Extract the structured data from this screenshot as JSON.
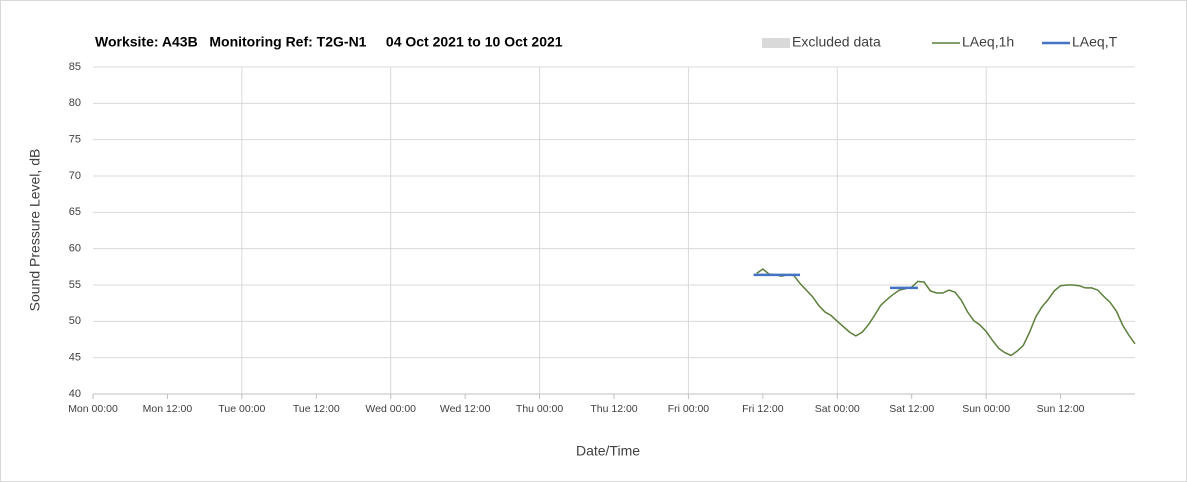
{
  "chart_data": {
    "type": "line",
    "title": "Worksite: A43B   Monitoring Ref: T2G-N1     04 Oct 2021 to 10 Oct 2021",
    "x_label": "Date/Time",
    "y_label": "Sound Pressure Level, dB",
    "xlim": [
      0,
      168
    ],
    "xticks": [
      {
        "value": 0,
        "label": "Mon 00:00"
      },
      {
        "value": 12,
        "label": "Mon 12:00"
      },
      {
        "value": 24,
        "label": "Tue 00:00"
      },
      {
        "value": 36,
        "label": "Tue 12:00"
      },
      {
        "value": 48,
        "label": "Wed 00:00"
      },
      {
        "value": 60,
        "label": "Wed 12:00"
      },
      {
        "value": 72,
        "label": "Thu 00:00"
      },
      {
        "value": 84,
        "label": "Thu 12:00"
      },
      {
        "value": 96,
        "label": "Fri 00:00"
      },
      {
        "value": 108,
        "label": "Fri 12:00"
      },
      {
        "value": 120,
        "label": "Sat 00:00"
      },
      {
        "value": 132,
        "label": "Sat 12:00"
      },
      {
        "value": 144,
        "label": "Sun 00:00"
      },
      {
        "value": 156,
        "label": "Sun 12:00"
      }
    ],
    "ylim": [
      40,
      85
    ],
    "yticks": [
      40,
      45,
      50,
      55,
      60,
      65,
      70,
      75,
      80,
      85
    ],
    "grid": true,
    "legend": "top-right",
    "series": [
      {
        "name": "Excluded data",
        "color": "#d9d9d9",
        "x": [],
        "values": []
      },
      {
        "name": "LAeq,1h",
        "color": "#5b7f3a",
        "x": [
          107,
          108,
          109,
          110,
          111,
          112,
          113,
          114,
          116,
          117,
          118,
          119,
          120,
          122,
          123,
          124,
          125,
          126,
          127,
          128,
          129,
          130,
          132,
          133,
          134,
          135,
          136,
          137,
          138,
          139,
          140,
          141,
          142,
          143,
          144,
          145,
          146,
          147,
          148,
          149,
          150,
          151,
          152,
          153,
          154,
          155,
          156,
          157,
          158,
          159,
          160,
          161,
          162,
          163,
          164,
          165,
          166,
          167,
          168
        ],
        "values": [
          56.6,
          57.2,
          56.5,
          56.4,
          56.2,
          56.4,
          56.3,
          55.2,
          53.4,
          52.2,
          51.3,
          50.8,
          50.0,
          48.5,
          48.0,
          48.5,
          49.5,
          50.8,
          52.2,
          53.0,
          53.7,
          54.3,
          54.7,
          55.5,
          55.4,
          54.2,
          53.9,
          53.9,
          54.3,
          54.0,
          52.9,
          51.3,
          50.1,
          49.5,
          48.6,
          47.4,
          46.3,
          45.7,
          45.3,
          45.9,
          46.7,
          48.5,
          50.6,
          52.0,
          53.0,
          54.2,
          54.9,
          55.0,
          55.0,
          54.9,
          54.6,
          54.6,
          54.3,
          53.4,
          52.6,
          51.4,
          49.5,
          48.1,
          46.9
        ]
      },
      {
        "name": "LAeq,T",
        "color": "#4472c4",
        "x": [
          106.5,
          114,
          121,
          128.5,
          133
        ],
        "values": [
          56.4,
          56.4,
          null,
          54.6,
          54.6
        ]
      }
    ]
  }
}
